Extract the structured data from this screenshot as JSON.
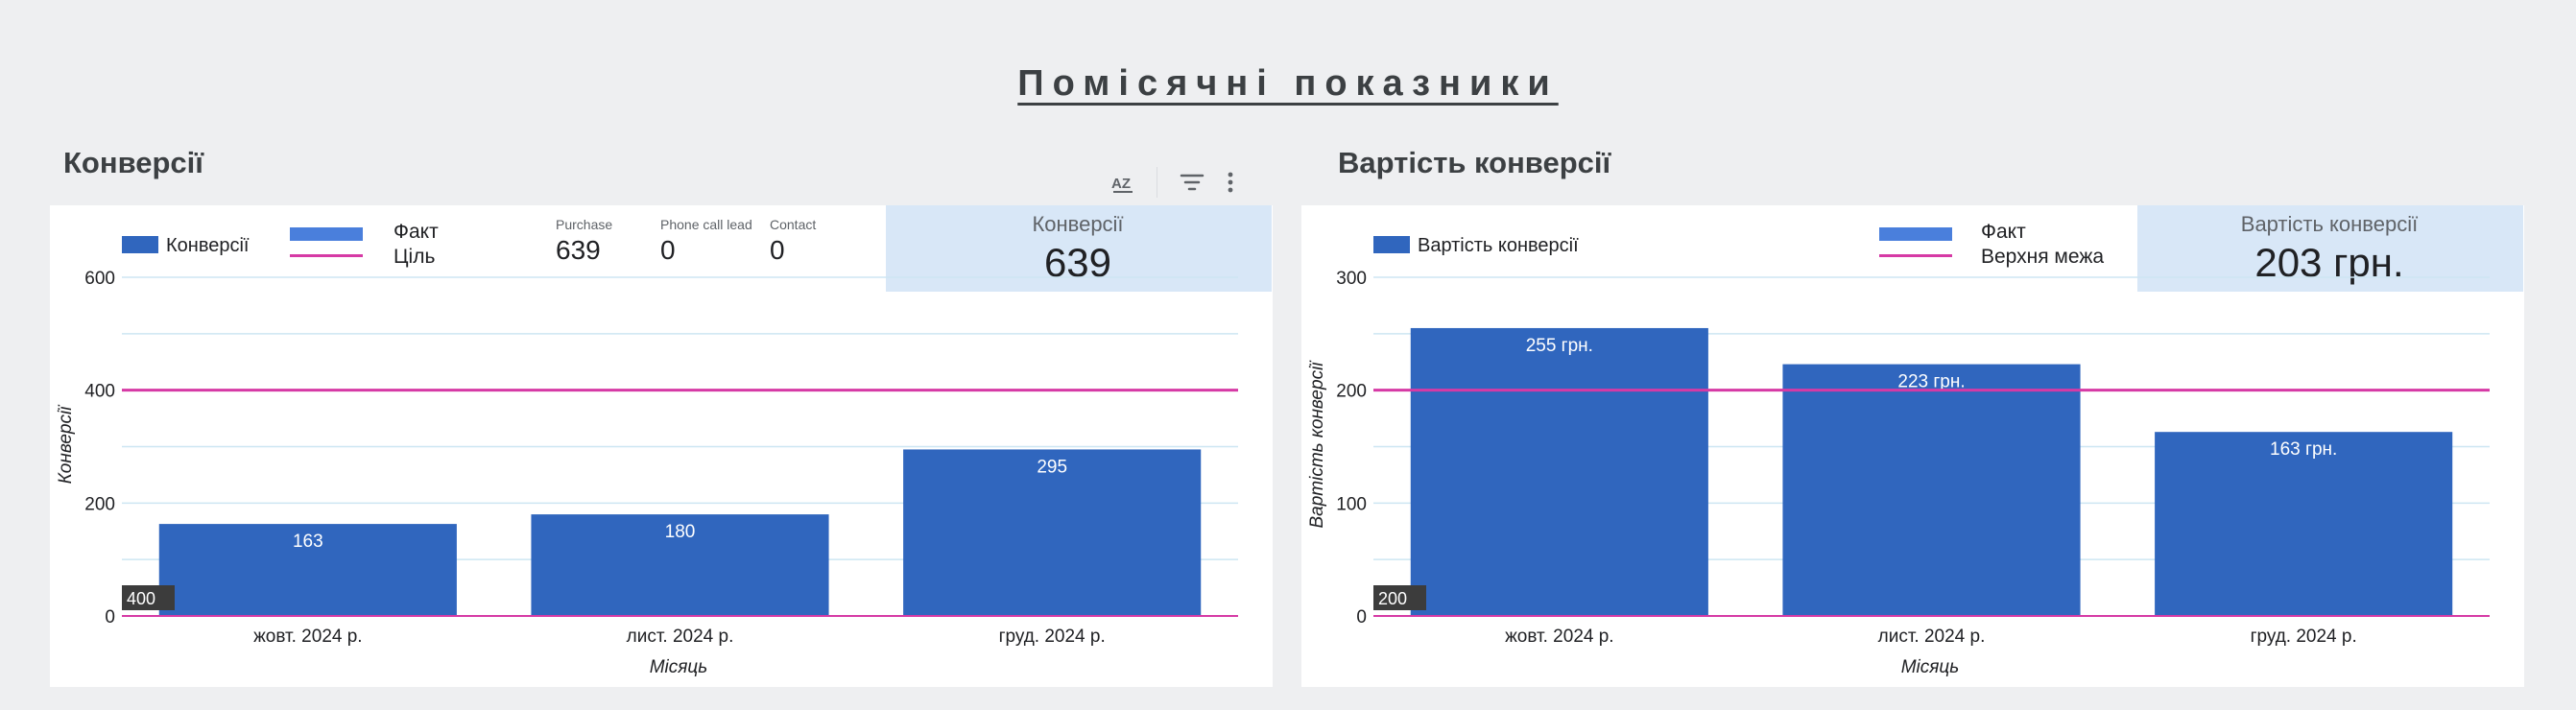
{
  "page": {
    "title": "Помісячні показники"
  },
  "toolbar": {
    "sort_icon": "sort-az-icon",
    "filter_icon": "filter-icon",
    "more_icon": "more-vert-icon"
  },
  "colors": {
    "bar": "#3066be",
    "bar_legend": "#4a7fdc",
    "target": "#d63aa5",
    "grid": "#cde6f3",
    "scorecard_bg": "#d8e7f7",
    "badge_bg": "#3c3c3c"
  },
  "conversions": {
    "section_title": "Конверсії",
    "legend_series": "Конверсії",
    "legend_fact": "Факт",
    "legend_target": "Ціль",
    "metrics": [
      {
        "label": "Purchase",
        "value": "639"
      },
      {
        "label": "Phone call lead",
        "value": "0"
      },
      {
        "label": "Contact",
        "value": "0"
      }
    ],
    "scorecard": {
      "label": "Конверсії",
      "value": "639"
    },
    "badge": "400"
  },
  "cost": {
    "section_title": "Вартість конверсії",
    "legend_series": "Вартість конверсії",
    "legend_fact": "Факт",
    "legend_target": "Верхня межа",
    "scorecard": {
      "label": "Вартість конверсії",
      "value": "203 грн."
    },
    "badge": "200"
  },
  "chart_data": [
    {
      "type": "bar",
      "title": "Конверсії",
      "categories": [
        "жовт. 2024 р.",
        "лист. 2024 р.",
        "груд. 2024 р."
      ],
      "series": [
        {
          "name": "Конверсії",
          "values": [
            163,
            180,
            295
          ]
        }
      ],
      "data_labels": [
        "163",
        "180",
        "295"
      ],
      "target_line": 400,
      "xlabel": "Місяць",
      "ylabel": "Конверсії",
      "ylim": [
        0,
        600
      ],
      "yticks": [
        0,
        200,
        400,
        600
      ],
      "grid": true,
      "legend": "top-left"
    },
    {
      "type": "bar",
      "title": "Вартість конверсії",
      "categories": [
        "жовт. 2024 р.",
        "лист. 2024 р.",
        "груд. 2024 р."
      ],
      "series": [
        {
          "name": "Вартість конверсії",
          "values": [
            255,
            223,
            163
          ]
        }
      ],
      "data_labels": [
        "255 грн.",
        "223 грн.",
        "163 грн."
      ],
      "target_line": 200,
      "xlabel": "Місяць",
      "ylabel": "Вартість конверсії",
      "ylim": [
        0,
        300
      ],
      "yticks": [
        0,
        100,
        200,
        300
      ],
      "grid": true,
      "legend": "top-left"
    }
  ]
}
